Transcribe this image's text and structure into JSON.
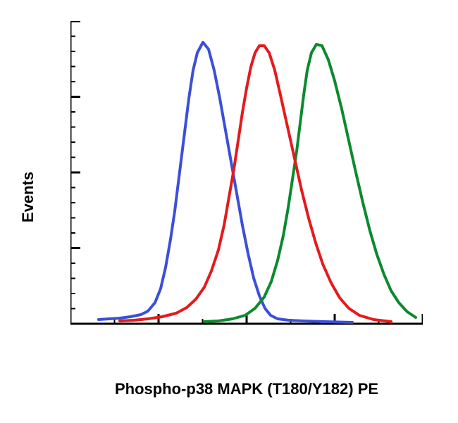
{
  "chart": {
    "type": "flow-cytometry-histogram",
    "xlabel": "Phospho-p38 MAPK (T180/Y182) PE",
    "ylabel": "Events",
    "axis_label_fontsize": 22,
    "axis_label_fontweight": "bold",
    "axis_label_color": "#000000",
    "background_color": "#ffffff",
    "axis_line_color": "#000000",
    "axis_line_width": 3,
    "line_width": 4,
    "xlim": [
      0,
      500
    ],
    "ylim": [
      0,
      430
    ],
    "y_ticks_major": [
      0,
      107.5,
      215,
      322.5,
      430
    ],
    "y_ticks_minor_per_major": 4,
    "x_ticks_major": [
      0,
      125,
      250,
      375,
      500
    ],
    "x_ticks_minor_per_major": 1,
    "series": [
      {
        "name": "blue-curve",
        "color": "#3b4fd8",
        "points": [
          [
            40,
            424
          ],
          [
            55,
            423
          ],
          [
            70,
            422
          ],
          [
            85,
            420
          ],
          [
            100,
            417
          ],
          [
            110,
            412
          ],
          [
            120,
            400
          ],
          [
            128,
            380
          ],
          [
            135,
            350
          ],
          [
            142,
            310
          ],
          [
            148,
            270
          ],
          [
            153,
            230
          ],
          [
            158,
            190
          ],
          [
            163,
            150
          ],
          [
            168,
            110
          ],
          [
            174,
            70
          ],
          [
            180,
            45
          ],
          [
            188,
            30
          ],
          [
            196,
            40
          ],
          [
            204,
            70
          ],
          [
            212,
            110
          ],
          [
            220,
            155
          ],
          [
            228,
            200
          ],
          [
            236,
            245
          ],
          [
            244,
            290
          ],
          [
            252,
            330
          ],
          [
            260,
            365
          ],
          [
            268,
            390
          ],
          [
            276,
            408
          ],
          [
            284,
            418
          ],
          [
            294,
            423
          ],
          [
            310,
            425
          ],
          [
            330,
            426
          ],
          [
            360,
            427
          ],
          [
            400,
            428
          ]
        ]
      },
      {
        "name": "red-curve",
        "color": "#e41a1c",
        "points": [
          [
            70,
            426
          ],
          [
            90,
            425
          ],
          [
            110,
            423
          ],
          [
            130,
            420
          ],
          [
            150,
            415
          ],
          [
            165,
            407
          ],
          [
            178,
            395
          ],
          [
            190,
            378
          ],
          [
            200,
            355
          ],
          [
            210,
            325
          ],
          [
            218,
            290
          ],
          [
            225,
            250
          ],
          [
            232,
            210
          ],
          [
            238,
            170
          ],
          [
            244,
            130
          ],
          [
            250,
            95
          ],
          [
            256,
            65
          ],
          [
            262,
            45
          ],
          [
            268,
            35
          ],
          [
            275,
            35
          ],
          [
            282,
            45
          ],
          [
            290,
            70
          ],
          [
            298,
            105
          ],
          [
            308,
            150
          ],
          [
            318,
            195
          ],
          [
            328,
            240
          ],
          [
            338,
            280
          ],
          [
            348,
            315
          ],
          [
            358,
            345
          ],
          [
            370,
            372
          ],
          [
            382,
            393
          ],
          [
            395,
            408
          ],
          [
            410,
            418
          ],
          [
            430,
            424
          ],
          [
            455,
            427
          ]
        ]
      },
      {
        "name": "green-curve",
        "color": "#0b8a2e",
        "points": [
          [
            190,
            427
          ],
          [
            210,
            426
          ],
          [
            230,
            423
          ],
          [
            248,
            418
          ],
          [
            262,
            408
          ],
          [
            275,
            392
          ],
          [
            285,
            370
          ],
          [
            294,
            340
          ],
          [
            302,
            305
          ],
          [
            309,
            265
          ],
          [
            315,
            225
          ],
          [
            321,
            185
          ],
          [
            326,
            145
          ],
          [
            331,
            105
          ],
          [
            336,
            70
          ],
          [
            342,
            45
          ],
          [
            349,
            33
          ],
          [
            357,
            35
          ],
          [
            366,
            55
          ],
          [
            375,
            85
          ],
          [
            385,
            125
          ],
          [
            395,
            170
          ],
          [
            405,
            215
          ],
          [
            415,
            258
          ],
          [
            425,
            298
          ],
          [
            435,
            332
          ],
          [
            445,
            360
          ],
          [
            455,
            383
          ],
          [
            466,
            400
          ],
          [
            478,
            413
          ],
          [
            490,
            421
          ]
        ]
      }
    ]
  }
}
